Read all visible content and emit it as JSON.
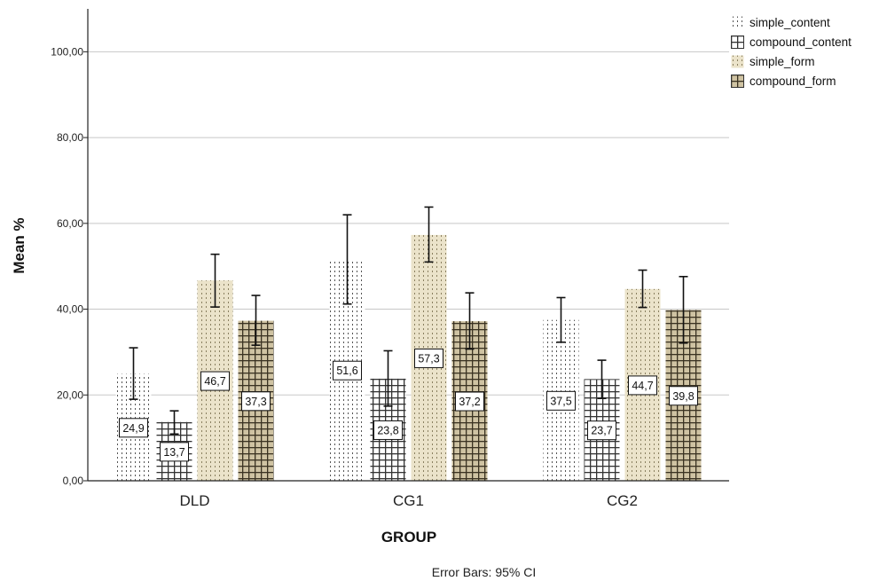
{
  "chart_data": {
    "type": "bar",
    "xlabel": "GROUP",
    "ylabel": "Mean %",
    "categories": [
      "DLD",
      "CG1",
      "CG2"
    ],
    "ylim": [
      0,
      110
    ],
    "yticks": [
      "0,00",
      "20,00",
      "40,00",
      "60,00",
      "80,00",
      "100,00"
    ],
    "ytick_values": [
      0,
      20,
      40,
      60,
      80,
      100
    ],
    "grid": "horizontal",
    "legend_position": "top-right",
    "series": [
      {
        "name": "simple_content",
        "values": [
          24.9,
          51.6,
          37.5
        ],
        "labels": [
          "24,9",
          "51,6",
          "37,5"
        ],
        "ci_low": [
          19.0,
          41.2,
          32.3
        ],
        "ci_high": [
          31.0,
          62.0,
          42.7
        ],
        "fill": "#ffffff",
        "pattern": "dots"
      },
      {
        "name": "compound_content",
        "values": [
          13.7,
          23.8,
          23.7
        ],
        "labels": [
          "13,7",
          "23,8",
          "23,7"
        ],
        "ci_low": [
          10.9,
          17.4,
          19.2
        ],
        "ci_high": [
          16.3,
          30.3,
          28.1
        ],
        "fill": "#ffffff",
        "pattern": "grid"
      },
      {
        "name": "simple_form",
        "values": [
          46.7,
          57.3,
          44.7
        ],
        "labels": [
          "46,7",
          "57,3",
          "44,7"
        ],
        "ci_low": [
          40.5,
          51.0,
          40.4
        ],
        "ci_high": [
          52.8,
          63.8,
          49.1
        ],
        "fill": "#ebe3ca",
        "pattern": "dots"
      },
      {
        "name": "compound_form",
        "values": [
          37.3,
          37.2,
          39.8
        ],
        "labels": [
          "37,3",
          "37,2",
          "39,8"
        ],
        "ci_low": [
          31.6,
          30.7,
          32.1
        ],
        "ci_high": [
          43.2,
          43.8,
          47.6
        ],
        "fill": "#cfc3a3",
        "pattern": "grid"
      }
    ],
    "footnote": "Error Bars: 95% CI"
  }
}
